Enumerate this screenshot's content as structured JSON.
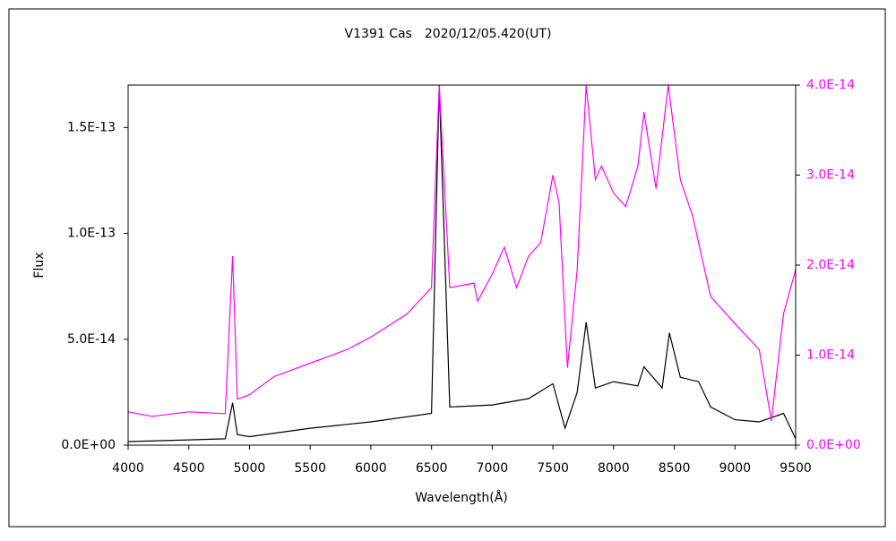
{
  "chart_data": {
    "type": "line",
    "title": "V1391 Cas　2020/12/05.420(UT)",
    "xlabel": "Wavelength(Å)",
    "ylabel": "Flux",
    "xlim": [
      4000,
      9500
    ],
    "xticks": [
      4000,
      4500,
      5000,
      5500,
      6000,
      6500,
      7000,
      7500,
      8000,
      8500,
      9000,
      9500
    ],
    "ylim": [
      0,
      1.7e-13
    ],
    "yticks": [
      {
        "value": 0,
        "label": "0.0E+00"
      },
      {
        "value": 5e-14,
        "label": "5.0E-14"
      },
      {
        "value": 1e-13,
        "label": "1.0E-13"
      },
      {
        "value": 1.5e-13,
        "label": "1.5E-13"
      }
    ],
    "y2lim": [
      0,
      4e-14
    ],
    "y2ticks": [
      {
        "value": 0,
        "label": "0.0E+00"
      },
      {
        "value": 1e-14,
        "label": "1.0E-14"
      },
      {
        "value": 2e-14,
        "label": "2.0E-14"
      },
      {
        "value": 3e-14,
        "label": "3.0E-14"
      },
      {
        "value": 4e-14,
        "label": "4.0E-14"
      }
    ],
    "y2color": "#ff00ff",
    "series": [
      {
        "color": "#000000",
        "axis": "y",
        "x": [
          4000,
          4500,
          4800,
          4861,
          4900,
          5000,
          5500,
          6000,
          6500,
          6563,
          6650,
          7000,
          7300,
          7500,
          7600,
          7700,
          7774,
          7850,
          8000,
          8200,
          8250,
          8400,
          8460,
          8550,
          8700,
          8800,
          9000,
          9200,
          9400,
          9500
        ],
        "values": [
          1.7e-15,
          2.5e-15,
          3e-15,
          2e-14,
          5e-15,
          4e-15,
          8e-15,
          1.1e-14,
          1.5e-14,
          1.7e-13,
          1.8e-14,
          1.9e-14,
          2.2e-14,
          2.9e-14,
          8e-15,
          2.5e-14,
          5.8e-14,
          2.7e-14,
          3e-14,
          2.8e-14,
          3.7e-14,
          2.7e-14,
          5.3e-14,
          3.2e-14,
          3e-14,
          1.8e-14,
          1.2e-14,
          1.1e-14,
          1.5e-14,
          3e-15
        ]
      },
      {
        "color": "#ff00ff",
        "axis": "y2",
        "x": [
          4000,
          4200,
          4500,
          4800,
          4861,
          4900,
          5000,
          5200,
          5500,
          5800,
          6000,
          6300,
          6500,
          6563,
          6650,
          6850,
          6880,
          7000,
          7100,
          7200,
          7300,
          7400,
          7500,
          7550,
          7620,
          7700,
          7774,
          7850,
          7900,
          8000,
          8100,
          8200,
          8250,
          8350,
          8450,
          8550,
          8650,
          8800,
          9000,
          9200,
          9300,
          9400,
          9500
        ],
        "values": [
          3.7e-15,
          3.2e-15,
          3.7e-15,
          3.5e-15,
          2.1e-14,
          5.1e-15,
          5.6e-15,
          7.6e-15,
          9.1e-15,
          1.06e-14,
          1.2e-14,
          1.46e-14,
          1.75e-14,
          4e-14,
          1.75e-14,
          1.8e-14,
          1.6e-14,
          1.9e-14,
          2.2e-14,
          1.75e-14,
          2.1e-14,
          2.25e-14,
          3e-14,
          2.7e-14,
          8.6e-15,
          1.95e-14,
          4e-14,
          2.95e-14,
          3.1e-14,
          2.8e-14,
          2.65e-14,
          3.1e-14,
          3.7e-14,
          2.85e-14,
          4e-14,
          2.95e-14,
          2.55e-14,
          1.65e-14,
          1.35e-14,
          1.06e-14,
          2.7e-15,
          1.46e-14,
          1.95e-14
        ]
      }
    ]
  }
}
